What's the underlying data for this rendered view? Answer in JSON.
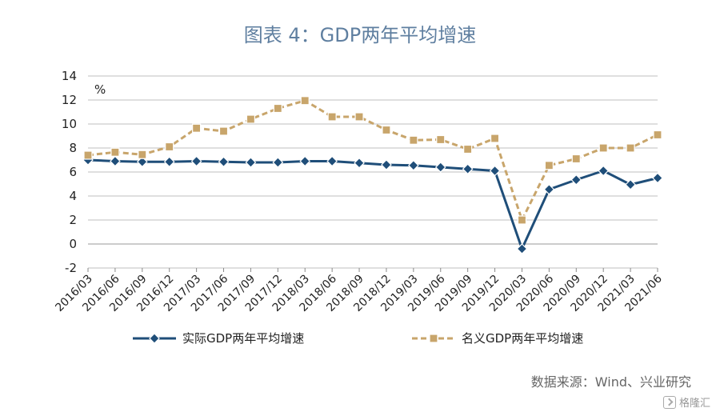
{
  "title": "图表 4：GDP两年平均增速",
  "source": "数据来源：Wind、兴业研究",
  "watermark": "格隆汇",
  "colors": {
    "real": "#1f4e79",
    "nominal": "#c8a56b",
    "title": "#5f7fa0",
    "grid": "#bfbfbf"
  },
  "chart_data": {
    "type": "line",
    "unit_label": "%",
    "categories": [
      "2016/03",
      "2016/06",
      "2016/09",
      "2016/12",
      "2017/03",
      "2017/06",
      "2017/09",
      "2017/12",
      "2018/03",
      "2018/06",
      "2018/09",
      "2018/12",
      "2019/03",
      "2019/06",
      "2019/09",
      "2019/12",
      "2020/03",
      "2020/06",
      "2020/09",
      "2020/12",
      "2021/03",
      "2021/06"
    ],
    "ylim": [
      -2,
      14
    ],
    "yticks": [
      -2,
      0,
      2,
      4,
      6,
      8,
      10,
      12,
      14
    ],
    "grid": true,
    "legend_position": "bottom",
    "series": [
      {
        "name": "实际GDP两年平均增速",
        "style": "solid-diamond",
        "color": "#1f4e79",
        "values": [
          7.0,
          6.9,
          6.85,
          6.85,
          6.9,
          6.85,
          6.8,
          6.8,
          6.9,
          6.9,
          6.75,
          6.6,
          6.55,
          6.4,
          6.25,
          6.1,
          -0.4,
          4.55,
          5.35,
          6.1,
          4.95,
          5.5
        ]
      },
      {
        "name": "名义GDP两年平均增速",
        "style": "dashed-square",
        "color": "#c8a56b",
        "values": [
          7.4,
          7.65,
          7.45,
          8.1,
          9.65,
          9.4,
          10.4,
          11.3,
          11.95,
          10.6,
          10.6,
          9.5,
          8.65,
          8.7,
          7.9,
          8.8,
          2.0,
          6.55,
          7.1,
          8.0,
          8.0,
          9.1
        ]
      }
    ]
  }
}
